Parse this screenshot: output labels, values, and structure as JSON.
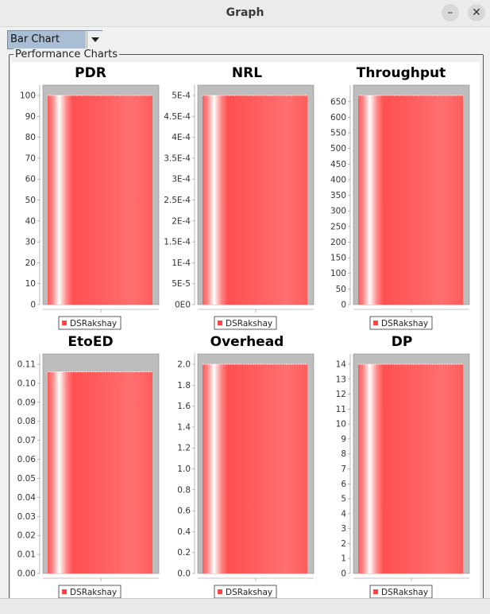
{
  "window": {
    "title": "Graph",
    "minimize_glyph": "–",
    "close_glyph": "✕"
  },
  "chart_selector": {
    "selected": "Bar Chart"
  },
  "panel": {
    "title": "Performance Charts"
  },
  "colors": {
    "bar": "#ff5a5a",
    "bar_top": "#bdbdbd",
    "plot_bg": "#bdbdbd"
  },
  "chart_data": [
    {
      "type": "bar",
      "title": "PDR",
      "categories": [
        ""
      ],
      "series": [
        {
          "name": "DSRakshay",
          "values": [
            100
          ]
        }
      ],
      "ylim": [
        0,
        100
      ],
      "yticks": [
        0,
        10,
        20,
        30,
        40,
        50,
        60,
        70,
        80,
        90,
        100
      ],
      "yticklabels": [
        "0",
        "10",
        "20",
        "30",
        "40",
        "50",
        "60",
        "70",
        "80",
        "90",
        "100"
      ]
    },
    {
      "type": "bar",
      "title": "NRL",
      "categories": [
        ""
      ],
      "series": [
        {
          "name": "DSRakshay",
          "values": [
            0.0005
          ]
        }
      ],
      "ylim": [
        0,
        0.0005
      ],
      "yticks": [
        0,
        5e-05,
        0.0001,
        0.00015,
        0.0002,
        0.00025,
        0.0003,
        0.00035,
        0.0004,
        0.00045,
        0.0005
      ],
      "yticklabels": [
        "0E0",
        "5E-5",
        "1E-4",
        "1.5E-4",
        "2E-4",
        "2.5E-4",
        "3E-4",
        "3.5E-4",
        "4E-4",
        "4.5E-4",
        "5E-4"
      ]
    },
    {
      "type": "bar",
      "title": "Throughput",
      "categories": [
        ""
      ],
      "series": [
        {
          "name": "DSRakshay",
          "values": [
            670
          ]
        }
      ],
      "ylim": [
        0,
        670
      ],
      "yticks": [
        0,
        50,
        100,
        150,
        200,
        250,
        300,
        350,
        400,
        450,
        500,
        550,
        600,
        650
      ],
      "yticklabels": [
        "0",
        "50",
        "100",
        "150",
        "200",
        "250",
        "300",
        "350",
        "400",
        "450",
        "500",
        "550",
        "600",
        "650"
      ]
    },
    {
      "type": "bar",
      "title": "EtoED",
      "categories": [
        ""
      ],
      "series": [
        {
          "name": "DSRakshay",
          "values": [
            0.106
          ]
        }
      ],
      "ylim": [
        0,
        0.11
      ],
      "yticks": [
        0,
        0.01,
        0.02,
        0.03,
        0.04,
        0.05,
        0.06,
        0.07,
        0.08,
        0.09,
        0.1,
        0.11
      ],
      "yticklabels": [
        "0.00",
        "0.01",
        "0.02",
        "0.03",
        "0.04",
        "0.05",
        "0.06",
        "0.07",
        "0.08",
        "0.09",
        "0.10",
        "0.11"
      ]
    },
    {
      "type": "bar",
      "title": "Overhead",
      "categories": [
        ""
      ],
      "series": [
        {
          "name": "DSRakshay",
          "values": [
            2.0
          ]
        }
      ],
      "ylim": [
        0,
        2.0
      ],
      "yticks": [
        0,
        0.2,
        0.4,
        0.6,
        0.8,
        1.0,
        1.2,
        1.4,
        1.6,
        1.8,
        2.0
      ],
      "yticklabels": [
        "0.0",
        "0.2",
        "0.4",
        "0.6",
        "0.8",
        "1.0",
        "1.2",
        "1.4",
        "1.6",
        "1.8",
        "2.0"
      ]
    },
    {
      "type": "bar",
      "title": "DP",
      "categories": [
        ""
      ],
      "series": [
        {
          "name": "DSRakshay",
          "values": [
            14
          ]
        }
      ],
      "ylim": [
        0,
        14
      ],
      "yticks": [
        0,
        1,
        2,
        3,
        4,
        5,
        6,
        7,
        8,
        9,
        10,
        11,
        12,
        13,
        14
      ],
      "yticklabels": [
        "0",
        "1",
        "2",
        "3",
        "4",
        "5",
        "6",
        "7",
        "8",
        "9",
        "10",
        "11",
        "12",
        "13",
        "14"
      ]
    }
  ]
}
